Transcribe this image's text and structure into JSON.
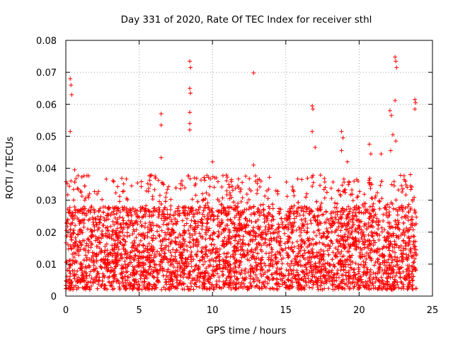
{
  "chart_data": {
    "type": "scatter",
    "title": "Day 331 of 2020, Rate Of TEC Index for receiver sthl",
    "xlabel": "GPS time / hours",
    "ylabel": "ROTI / TECUs",
    "xlim": [
      0,
      25
    ],
    "ylim": [
      0,
      0.08
    ],
    "x_ticks": [
      0,
      5,
      10,
      15,
      20,
      25
    ],
    "x_tick_labels": [
      "0",
      "5",
      "10",
      "15",
      "20",
      "25"
    ],
    "y_ticks": [
      0,
      0.01,
      0.02,
      0.03,
      0.04,
      0.05,
      0.06,
      0.07,
      0.08
    ],
    "y_tick_labels": [
      "0",
      "0.01",
      "0.02",
      "0.03",
      "0.04",
      "0.05",
      "0.06",
      "0.07",
      "0.08"
    ],
    "grid": true,
    "marker": "+",
    "color": "#ff0000",
    "data_extent_hours": [
      0,
      23.9
    ],
    "bulk_range": [
      0.002,
      0.028
    ],
    "outliers": [
      [
        0.3,
        0.068
      ],
      [
        0.35,
        0.066
      ],
      [
        0.4,
        0.063
      ],
      [
        0.3,
        0.0515
      ],
      [
        0.35,
        0.036
      ],
      [
        0.6,
        0.0395
      ],
      [
        6.5,
        0.057
      ],
      [
        6.5,
        0.0535
      ],
      [
        6.5,
        0.0433
      ],
      [
        8.45,
        0.0735
      ],
      [
        8.5,
        0.0715
      ],
      [
        8.45,
        0.065
      ],
      [
        8.5,
        0.0635
      ],
      [
        8.45,
        0.0575
      ],
      [
        8.45,
        0.054
      ],
      [
        8.45,
        0.052
      ],
      [
        10.0,
        0.042
      ],
      [
        12.8,
        0.0698
      ],
      [
        12.8,
        0.041
      ],
      [
        13.2,
        0.0365
      ],
      [
        16.8,
        0.0595
      ],
      [
        16.85,
        0.0585
      ],
      [
        16.8,
        0.0515
      ],
      [
        17.0,
        0.0465
      ],
      [
        18.8,
        0.0515
      ],
      [
        18.9,
        0.0495
      ],
      [
        18.8,
        0.0455
      ],
      [
        19.2,
        0.042
      ],
      [
        20.7,
        0.0475
      ],
      [
        20.8,
        0.0445
      ],
      [
        21.5,
        0.0445
      ],
      [
        22.1,
        0.058
      ],
      [
        22.2,
        0.0565
      ],
      [
        22.3,
        0.0505
      ],
      [
        22.15,
        0.0455
      ],
      [
        22.45,
        0.0748
      ],
      [
        22.5,
        0.0735
      ],
      [
        22.55,
        0.0715
      ],
      [
        22.45,
        0.0612
      ],
      [
        22.5,
        0.0485
      ],
      [
        23.8,
        0.0615
      ],
      [
        23.85,
        0.0605
      ],
      [
        23.8,
        0.0585
      ],
      [
        23.5,
        0.038
      ]
    ]
  }
}
